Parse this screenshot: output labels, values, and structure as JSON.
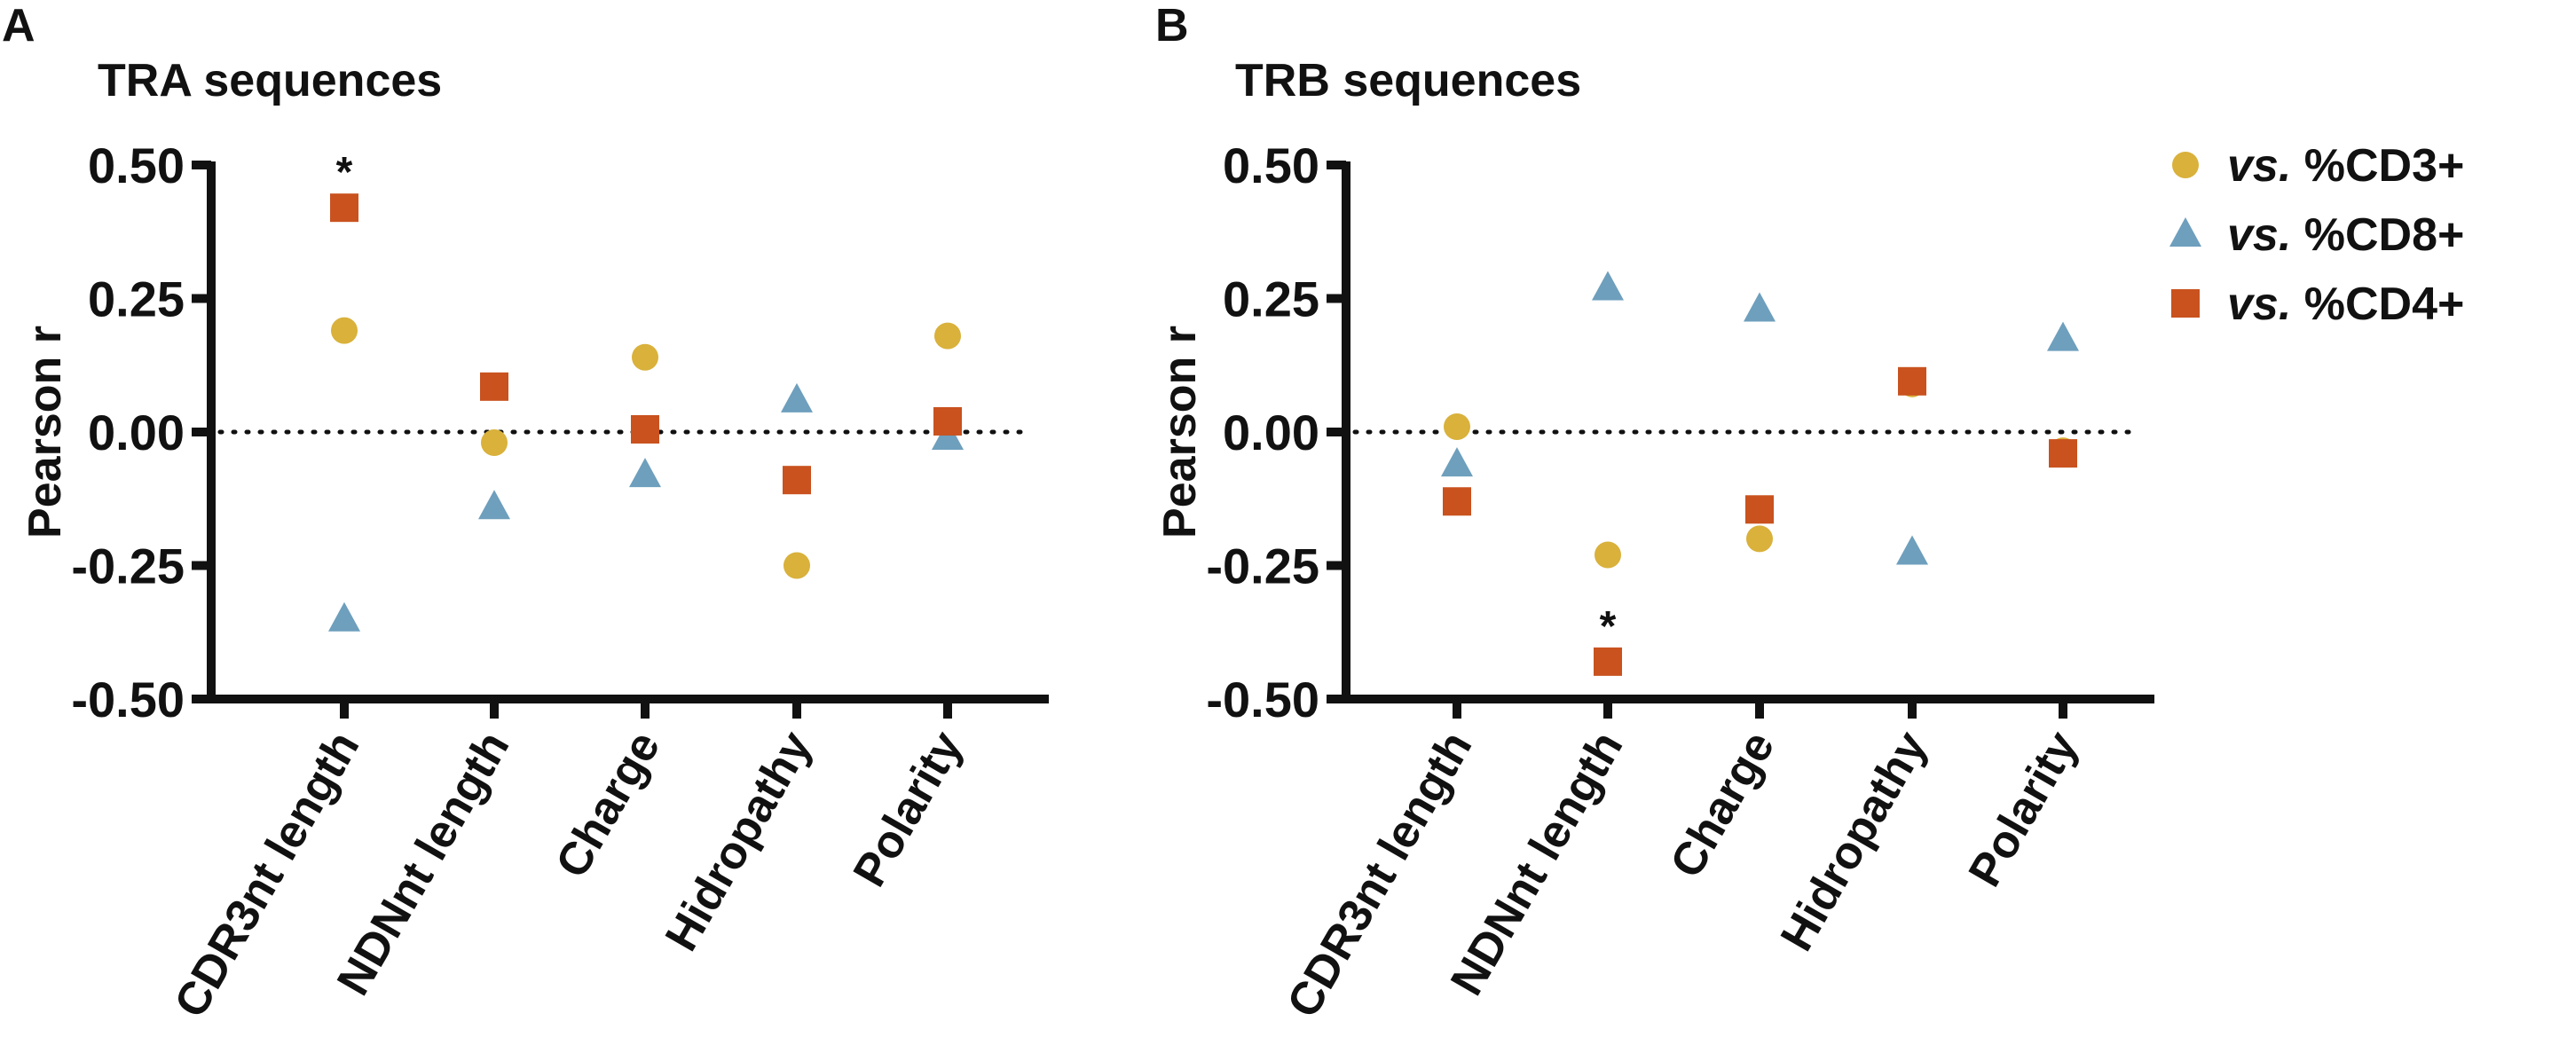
{
  "chart_data": [
    {
      "panel": "A",
      "type": "scatter",
      "title": "TRA sequences",
      "ylabel": "Pearson r",
      "ylim": [
        -0.5,
        0.5
      ],
      "yticks": [
        "0.50",
        "0.25",
        "0.00",
        "-0.25",
        "-0.50"
      ],
      "ytick_values": [
        0.5,
        0.25,
        0,
        -0.25,
        -0.5
      ],
      "reference_line": 0,
      "categories": [
        "CDR3nt length",
        "NDNnt length",
        "Charge",
        "Hidropathy",
        "Polarity"
      ],
      "series": [
        {
          "name": "vs. %CD3+",
          "values": [
            0.19,
            -0.02,
            0.14,
            -0.25,
            0.18
          ]
        },
        {
          "name": "vs. %CD8+",
          "values": [
            -0.35,
            -0.14,
            -0.08,
            0.06,
            -0.01
          ]
        },
        {
          "name": "vs. %CD4+",
          "values": [
            0.42,
            0.085,
            0.005,
            -0.09,
            0.02
          ]
        }
      ],
      "annotations": [
        {
          "text": "*",
          "category": "CDR3nt length",
          "series": "vs. %CD4+"
        }
      ]
    },
    {
      "panel": "B",
      "type": "scatter",
      "title": "TRB sequences",
      "ylabel": "Pearson r",
      "ylim": [
        -0.5,
        0.5
      ],
      "yticks": [
        "0.50",
        "0.25",
        "0.00",
        "-0.25",
        "-0.50"
      ],
      "ytick_values": [
        0.5,
        0.25,
        0,
        -0.25,
        -0.5
      ],
      "reference_line": 0,
      "categories": [
        "CDR3nt length",
        "NDNnt length",
        "Charge",
        "Hidropathy",
        "Polarity"
      ],
      "series": [
        {
          "name": "vs. %CD3+",
          "values": [
            0.01,
            -0.23,
            -0.2,
            0.09,
            -0.035
          ]
        },
        {
          "name": "vs. %CD8+",
          "values": [
            -0.06,
            0.27,
            0.23,
            -0.225,
            0.175
          ]
        },
        {
          "name": "vs. %CD4+",
          "values": [
            -0.13,
            -0.43,
            -0.145,
            0.095,
            -0.04
          ]
        }
      ],
      "annotations": [
        {
          "text": "*",
          "category": "NDNnt length",
          "series": "vs. %CD4+"
        }
      ]
    }
  ],
  "legend": {
    "placement": "top-right",
    "items": [
      {
        "prefix": "vs.",
        "label": " %CD3+",
        "marker": "circle",
        "color": "#d9b13b"
      },
      {
        "prefix": "vs.",
        "label": " %CD8+",
        "marker": "triangle",
        "color": "#6e9fbd"
      },
      {
        "prefix": "vs.",
        "label": " %CD4+",
        "marker": "square",
        "color": "#c9521f"
      }
    ]
  }
}
